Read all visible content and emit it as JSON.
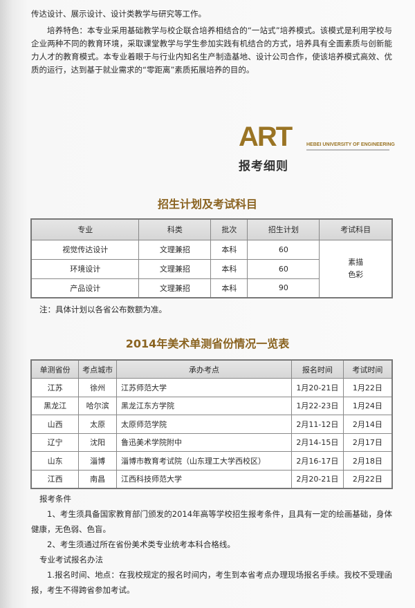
{
  "intro": {
    "line1": "传达设计、展示设计、设计类教学与研究等工作。",
    "features": "培养特色：本专业采用基础教学与校企联合培养相结合的“一站式”培养模式。该模式是利用学校与企业两种不同的教育环境，采取课堂教学与学生参加实践有机结合的方式，培养具有全面素质与创新能力人才的教育模式。本专业着眼于与行业内知名生产制造基地、设计公司合作，使该培养模式高效、优质的运行，达到基于就业需求的“零距离”素质拓展培养的目的。"
  },
  "logo": {
    "art": "ART",
    "university": "HEBEI UNIVERSITY OF ENGINEERING",
    "section": "报考细则"
  },
  "plan": {
    "title": "招生计划及考试科目",
    "headers": [
      "专业",
      "科类",
      "批次",
      "招生计划",
      "考试科目"
    ],
    "rows": [
      [
        "视觉传达设计",
        "文理兼招",
        "本科",
        "60"
      ],
      [
        "环境设计",
        "文理兼招",
        "本科",
        "60"
      ],
      [
        "产品设计",
        "文理兼招",
        "本科",
        "90"
      ]
    ],
    "subjects": [
      "素描",
      "色彩"
    ],
    "note": "注：具体计划以各省公布数额为准。"
  },
  "provinces": {
    "title": "2014年美术单测省份情况一览表",
    "headers": [
      "单测省份",
      "考点城市",
      "承办考点",
      "报名时间",
      "考试时间"
    ],
    "rows": [
      [
        "江苏",
        "徐州",
        "江苏师范大学",
        "1月20-21日",
        "1月22日"
      ],
      [
        "黑龙江",
        "哈尔滨",
        "黑龙江东方学院",
        "1月22-23日",
        "1月24日"
      ],
      [
        "山西",
        "太原",
        "太原师范学院",
        "2月11-12日",
        "2月14日"
      ],
      [
        "辽宁",
        "沈阳",
        "鲁迅美术学院附中",
        "2月14-15日",
        "2月17日"
      ],
      [
        "山东",
        "淄博",
        "淄博市教育考试院（山东理工大学西校区）",
        "2月16-17日",
        "2月18日"
      ],
      [
        "江西",
        "南昌",
        "江西科技师范大学",
        "2月20-21日",
        "2月22日"
      ]
    ]
  },
  "conditions": {
    "heading": "报考条件",
    "item1": "1、考生须具备国家教育部门颁发的2014年高等学校招生报考条件，且具有一定的绘画基础，身体健康，无色弱、色盲。",
    "item2": "2、考生须通过所在省份美术类专业统考本科合格线。",
    "heading2": "专业考试报名办法",
    "item3": "1.报名时间、地点：在我校规定的报名时间内，考生到本省考点办理现场报名手续。我校不受理函报，考生不得跨省参加考试。"
  },
  "colors": {
    "accent": "#8a6320"
  }
}
